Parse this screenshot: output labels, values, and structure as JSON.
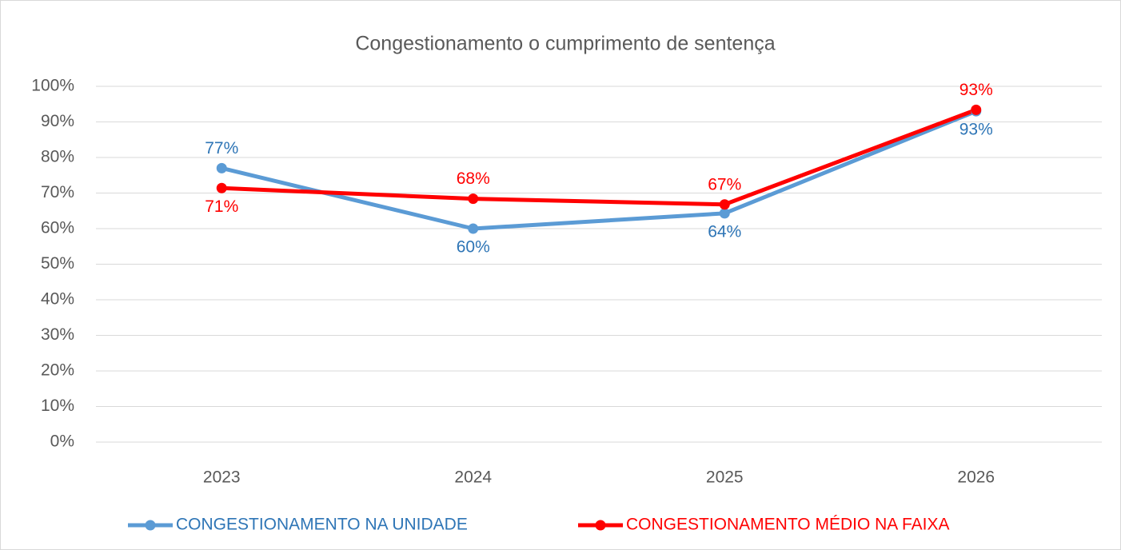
{
  "chart_data": {
    "type": "line",
    "title": "Congestionamento o cumprimento de sentença",
    "categories": [
      "2023",
      "2024",
      "2025",
      "2026"
    ],
    "series": [
      {
        "name": "CONGESTIONAMENTO NA UNIDADE",
        "color": "#5b9bd5",
        "label_color": "#2e75b6",
        "values": [
          77.0,
          60.0,
          64.3,
          93.0
        ],
        "value_labels": [
          "77%",
          "60%",
          "64%",
          "93%"
        ]
      },
      {
        "name": "CONGESTIONAMENTO MÉDIO NA FAIXA",
        "color": "#ff0000",
        "label_color": "#ff0000",
        "values": [
          71.4,
          68.4,
          66.8,
          93.4
        ],
        "value_labels": [
          "71%",
          "68%",
          "67%",
          "93%"
        ]
      }
    ],
    "ylim": [
      0,
      100
    ],
    "yticks": [
      {
        "value": 0,
        "label": "0%"
      },
      {
        "value": 10,
        "label": "10%"
      },
      {
        "value": 20,
        "label": "20%"
      },
      {
        "value": 30,
        "label": "30%"
      },
      {
        "value": 40,
        "label": "40%"
      },
      {
        "value": 50,
        "label": "50%"
      },
      {
        "value": 60,
        "label": "60%"
      },
      {
        "value": 70,
        "label": "70%"
      },
      {
        "value": 80,
        "label": "80%"
      },
      {
        "value": 90,
        "label": "90%"
      },
      {
        "value": 100,
        "label": "100%"
      }
    ],
    "grid": true,
    "legend": "bottom"
  }
}
